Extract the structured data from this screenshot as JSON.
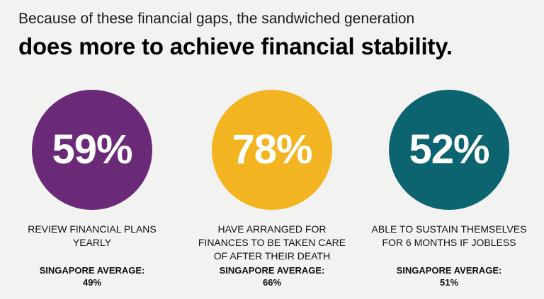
{
  "subtitle": "Because of these financial gaps, the sandwiched generation",
  "headline": "does more to achieve financial stability.",
  "stats": [
    {
      "value": "59%",
      "description": "REVIEW FINANCIAL PLANS\nYEARLY",
      "average_label": "SINGAPORE AVERAGE:",
      "average_value": "49%",
      "color": "#6b2a78"
    },
    {
      "value": "78%",
      "description": "HAVE ARRANGED FOR\nFINANCES TO BE TAKEN CARE\nOF AFTER THEIR DEATH",
      "average_label": "SINGAPORE AVERAGE:",
      "average_value": "66%",
      "color": "#f2b521"
    },
    {
      "value": "52%",
      "description": "ABLE TO SUSTAIN THEMSELVES\nFOR 6 MONTHS IF JOBLESS",
      "average_label": "SINGAPORE AVERAGE:",
      "average_value": "51%",
      "color": "#0b6470"
    }
  ]
}
